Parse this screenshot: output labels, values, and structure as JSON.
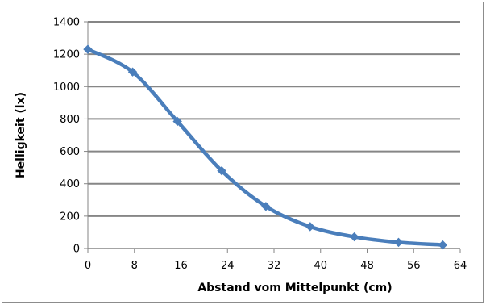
{
  "chart_data": {
    "type": "line",
    "title": "",
    "xlabel": "Abstand vom Mittelpunkt (cm)",
    "ylabel": "Helligkeit (lx)",
    "xlim": [
      0,
      64
    ],
    "ylim": [
      0,
      1400
    ],
    "x_ticks": [
      0,
      8,
      16,
      24,
      32,
      40,
      48,
      56,
      64
    ],
    "y_ticks": [
      0,
      200,
      400,
      600,
      800,
      1000,
      1200,
      1400
    ],
    "grid": "horizontal",
    "legend": "none",
    "smooth": true,
    "series": [
      {
        "color": "#4a7ebb",
        "points": [
          {
            "x": 0,
            "y": 1230
          },
          {
            "x": 7.7,
            "y": 1090
          },
          {
            "x": 15.4,
            "y": 785
          },
          {
            "x": 23,
            "y": 480
          },
          {
            "x": 30.6,
            "y": 260
          },
          {
            "x": 38.2,
            "y": 135
          },
          {
            "x": 45.8,
            "y": 72
          },
          {
            "x": 53.4,
            "y": 38
          },
          {
            "x": 61,
            "y": 22
          }
        ]
      }
    ]
  }
}
